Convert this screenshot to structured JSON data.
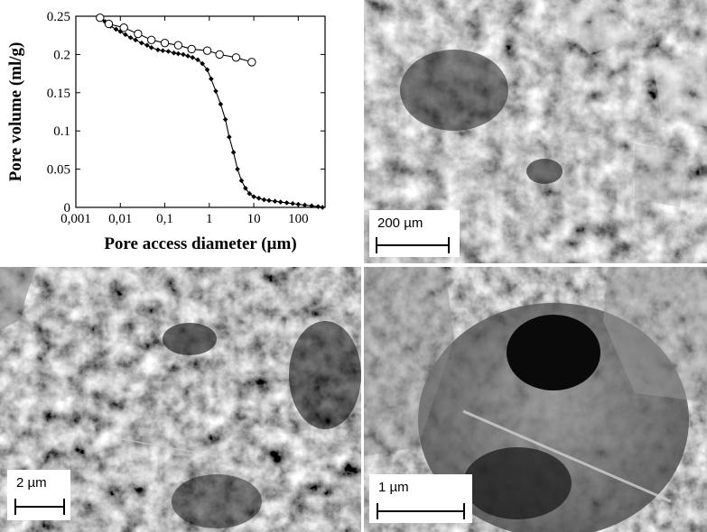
{
  "chart_data": {
    "type": "line",
    "xlabel": "Pore access diameter (µm)",
    "ylabel": "Pore volume (ml/g)",
    "xscale": "log",
    "xlim": [
      0.001,
      400
    ],
    "ylim": [
      0,
      0.25
    ],
    "xticks": [
      "0,001",
      "0,01",
      "0,1",
      "1",
      "10",
      "100"
    ],
    "xtick_values": [
      0.001,
      0.01,
      0.1,
      1,
      10,
      100
    ],
    "yticks": [
      "0",
      "0.05",
      "0.1",
      "0.15",
      "0.2",
      "0.25"
    ],
    "ytick_values": [
      0,
      0.05,
      0.1,
      0.15,
      0.2,
      0.25
    ],
    "grid": false,
    "series": [
      {
        "marker": "filled-diamond",
        "x": [
          0.0035,
          0.0045,
          0.006,
          0.008,
          0.01,
          0.013,
          0.017,
          0.022,
          0.03,
          0.04,
          0.05,
          0.07,
          0.09,
          0.12,
          0.16,
          0.2,
          0.26,
          0.33,
          0.42,
          0.55,
          0.7,
          0.9,
          1.1,
          1.4,
          1.8,
          2.3,
          2.8,
          3.5,
          4.3,
          5.3,
          6.5,
          8,
          10,
          13,
          17,
          22,
          30,
          40,
          55,
          75,
          100,
          140,
          200,
          280,
          350
        ],
        "y": [
          0.248,
          0.243,
          0.237,
          0.233,
          0.23,
          0.226,
          0.222,
          0.219,
          0.215,
          0.212,
          0.209,
          0.206,
          0.205,
          0.204,
          0.202,
          0.201,
          0.2,
          0.198,
          0.196,
          0.193,
          0.188,
          0.18,
          0.168,
          0.152,
          0.135,
          0.115,
          0.092,
          0.072,
          0.05,
          0.035,
          0.025,
          0.018,
          0.014,
          0.012,
          0.01,
          0.009,
          0.008,
          0.007,
          0.006,
          0.005,
          0.004,
          0.003,
          0.002,
          0.001,
          0.0
        ]
      },
      {
        "marker": "open-circle",
        "x": [
          0.0035,
          0.0055,
          0.012,
          0.025,
          0.05,
          0.1,
          0.2,
          0.4,
          0.9,
          1.7,
          4,
          9
        ],
        "y": [
          0.248,
          0.24,
          0.235,
          0.227,
          0.219,
          0.215,
          0.212,
          0.207,
          0.205,
          0.2,
          0.196,
          0.19
        ]
      }
    ]
  },
  "micrographs": [
    {
      "name": "sem-micrograph-a",
      "scale_label": "200 µm"
    },
    {
      "name": "sem-micrograph-b",
      "scale_label": "2 µm"
    },
    {
      "name": "sem-micrograph-c",
      "scale_label": "1 µm"
    }
  ]
}
